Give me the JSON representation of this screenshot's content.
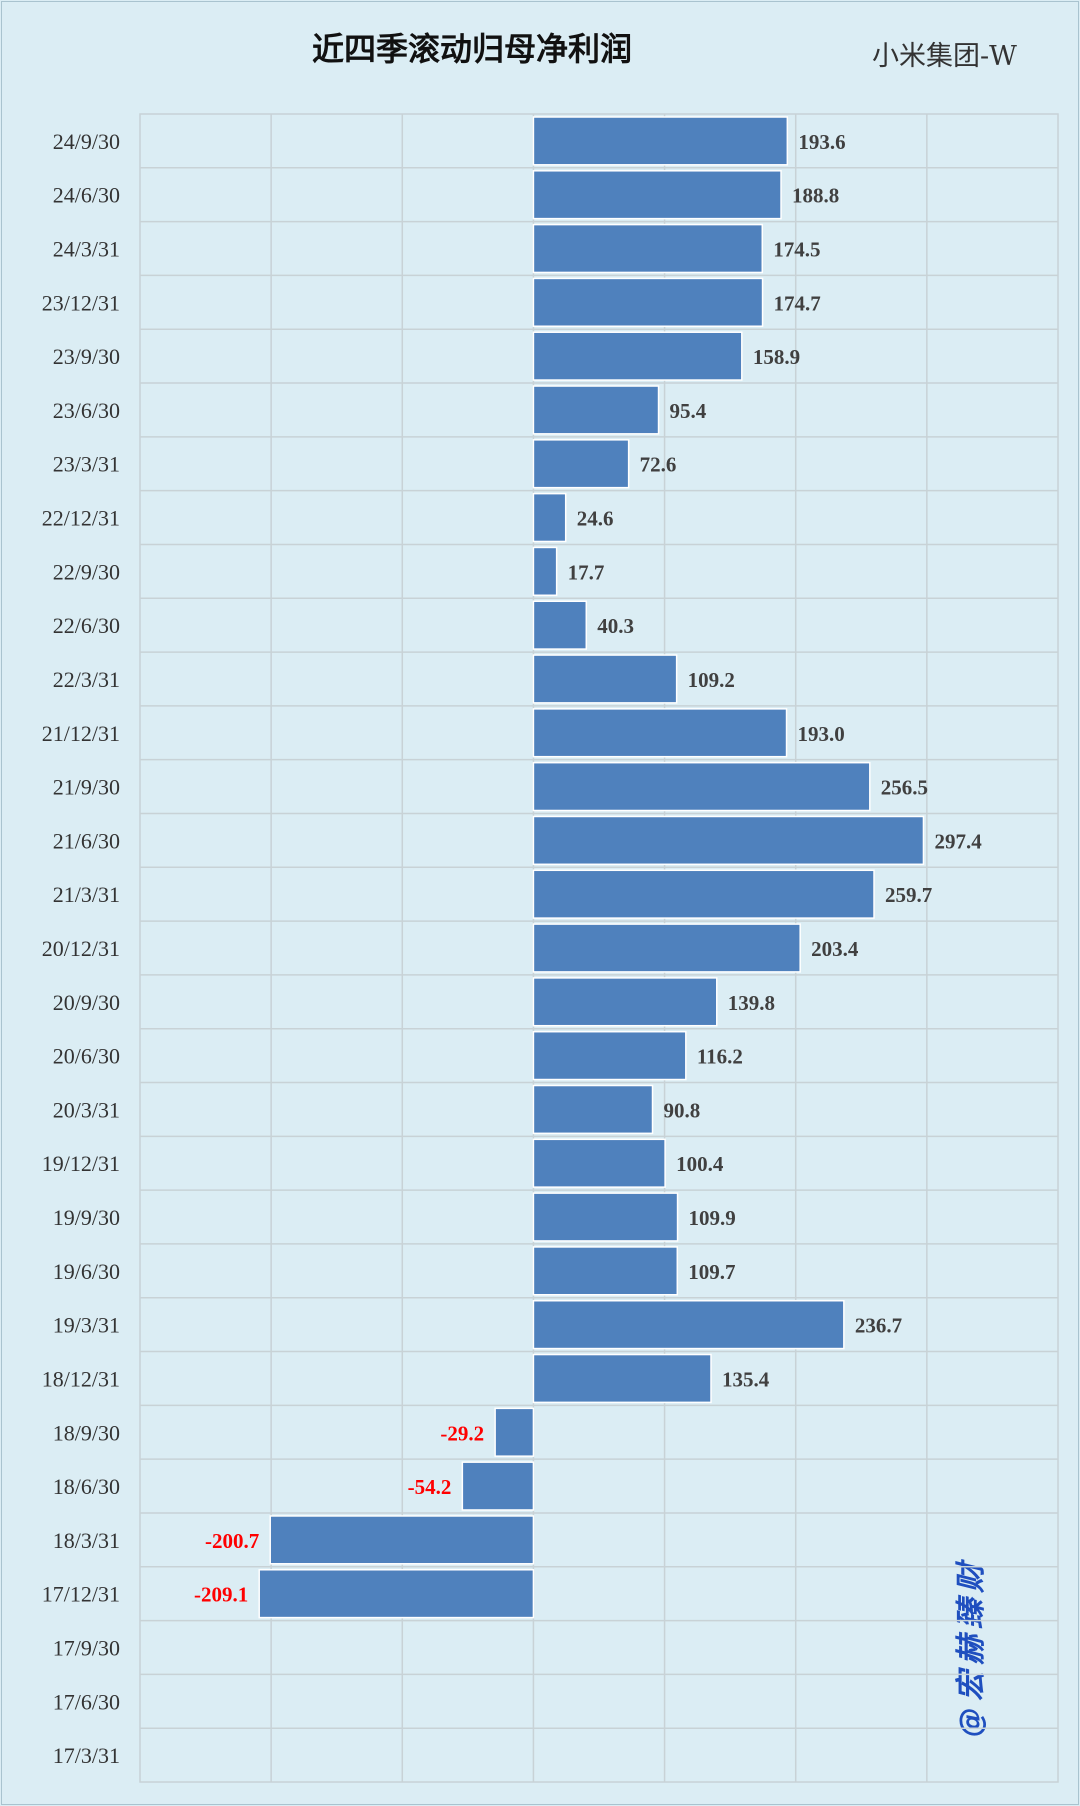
{
  "title": "近四季滚动归母净利润",
  "company": "小米集团-W",
  "watermark": "@宏赫臻财",
  "colors": {
    "background": "#dbedf4",
    "bar": "#4f81bd",
    "positive_label": "#404040",
    "negative_label": "#ff0000",
    "grid": "#c8d2d6"
  },
  "chart_data": {
    "type": "bar",
    "orientation": "horizontal",
    "title": "近四季滚动归母净利润",
    "subtitle": "小米集团-W",
    "categories": [
      "24/9/30",
      "24/6/30",
      "24/3/31",
      "23/12/31",
      "23/9/30",
      "23/6/30",
      "23/3/31",
      "22/12/31",
      "22/9/30",
      "22/6/30",
      "22/3/31",
      "21/12/31",
      "21/9/30",
      "21/6/30",
      "21/3/31",
      "20/12/31",
      "20/9/30",
      "20/6/30",
      "20/3/31",
      "19/12/31",
      "19/9/30",
      "19/6/30",
      "19/3/31",
      "18/12/31",
      "18/9/30",
      "18/6/30",
      "18/3/31",
      "17/12/31",
      "17/9/30",
      "17/6/30",
      "17/3/31"
    ],
    "values": [
      193.6,
      188.8,
      174.5,
      174.7,
      158.9,
      95.4,
      72.6,
      24.6,
      17.7,
      40.3,
      109.2,
      193.0,
      256.5,
      297.4,
      259.7,
      203.4,
      139.8,
      116.2,
      90.8,
      100.4,
      109.9,
      109.7,
      236.7,
      135.4,
      -29.2,
      -54.2,
      -200.7,
      -209.1,
      null,
      null,
      null
    ],
    "value_labels": [
      "193.6",
      "188.8",
      "174.5",
      "174.7",
      "158.9",
      "95.4",
      "72.6",
      "24.6",
      "17.7",
      "40.3",
      "109.2",
      "193.0",
      "256.5",
      "297.4",
      "259.7",
      "203.4",
      "139.8",
      "116.2",
      "90.8",
      "100.4",
      "109.9",
      "109.7",
      "236.7",
      "135.4",
      "-29.2",
      "-54.2",
      "-200.7",
      "-209.1",
      "",
      "",
      ""
    ],
    "xlim": [
      -300,
      400
    ],
    "grid": true,
    "legend": "none"
  }
}
